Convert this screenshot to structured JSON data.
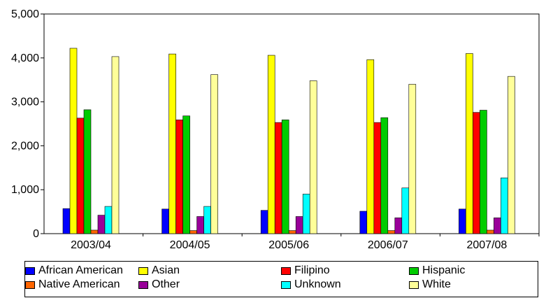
{
  "chart_data": {
    "type": "bar",
    "title": "",
    "xlabel": "",
    "ylabel": "",
    "ylim": [
      0,
      5000
    ],
    "yticks": [
      "0",
      "1,000",
      "2,000",
      "3,000",
      "4,000",
      "5,000"
    ],
    "grid": false,
    "legend_position": "bottom",
    "categories": [
      "2003/04",
      "2004/05",
      "2005/06",
      "2006/07",
      "2007/08"
    ],
    "series": [
      {
        "name": "African American",
        "color": "#0000ff",
        "values": [
          570,
          560,
          530,
          510,
          560
        ]
      },
      {
        "name": "Asian",
        "color": "#ffff00",
        "values": [
          4220,
          4090,
          4060,
          3960,
          4100
        ]
      },
      {
        "name": "Filipino",
        "color": "#ff0000",
        "values": [
          2630,
          2590,
          2530,
          2530,
          2760
        ]
      },
      {
        "name": "Hispanic",
        "color": "#00cc00",
        "values": [
          2820,
          2680,
          2590,
          2640,
          2810
        ]
      },
      {
        "name": "Native American",
        "color": "#ff6600",
        "values": [
          80,
          70,
          70,
          70,
          80
        ]
      },
      {
        "name": "Other",
        "color": "#990099",
        "values": [
          420,
          390,
          390,
          360,
          360
        ]
      },
      {
        "name": "Unknown",
        "color": "#00ffff",
        "values": [
          620,
          620,
          900,
          1040,
          1270
        ]
      },
      {
        "name": "White",
        "color": "#ffff99",
        "values": [
          4030,
          3620,
          3480,
          3400,
          3580
        ]
      }
    ]
  }
}
